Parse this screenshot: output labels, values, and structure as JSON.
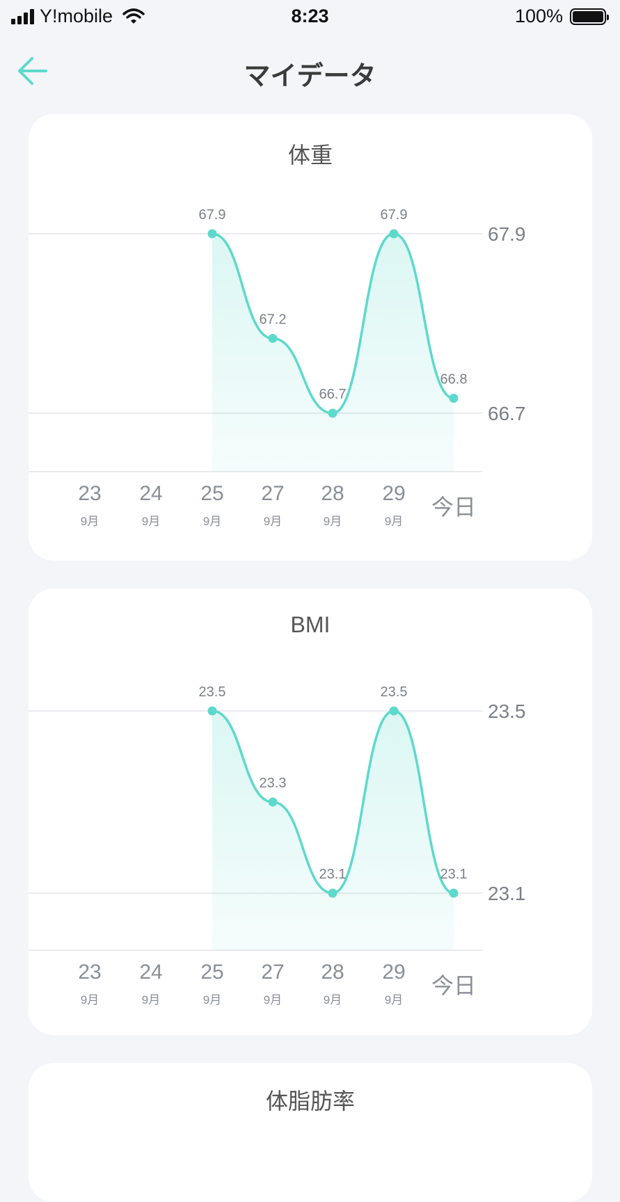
{
  "status_bar": {
    "carrier": "Y!mobile",
    "time": "8:23",
    "battery": "100%"
  },
  "header": {
    "title": "マイデータ"
  },
  "colors": {
    "accent": "#5dd9cb",
    "background": "#f4f5f9"
  },
  "x_axis": {
    "days": [
      "23",
      "24",
      "25",
      "27",
      "28",
      "29"
    ],
    "month": "9月",
    "today": "今日"
  },
  "cards": [
    {
      "title": "体重",
      "ref_lines": [
        "67.9",
        "66.7"
      ]
    },
    {
      "title": "BMI",
      "ref_lines": [
        "23.5",
        "23.1"
      ]
    },
    {
      "title": "体脂肪率"
    }
  ],
  "chart_data": [
    {
      "type": "area",
      "title": "体重",
      "x": [
        "25 9月",
        "27 9月",
        "28 9月",
        "29 9月",
        "今日"
      ],
      "values": [
        67.9,
        67.2,
        66.7,
        67.9,
        66.8
      ],
      "data_labels": [
        "67.9",
        "67.2",
        "66.7",
        "67.9",
        "66.8"
      ],
      "ylim": [
        66.7,
        67.9
      ]
    },
    {
      "type": "area",
      "title": "BMI",
      "x": [
        "25 9月",
        "27 9月",
        "28 9月",
        "29 9月",
        "今日"
      ],
      "values": [
        23.5,
        23.3,
        23.1,
        23.5,
        23.1
      ],
      "data_labels": [
        "23.5",
        "23.3",
        "23.1",
        "23.5",
        "23.1"
      ],
      "ylim": [
        23.1,
        23.5
      ]
    }
  ]
}
